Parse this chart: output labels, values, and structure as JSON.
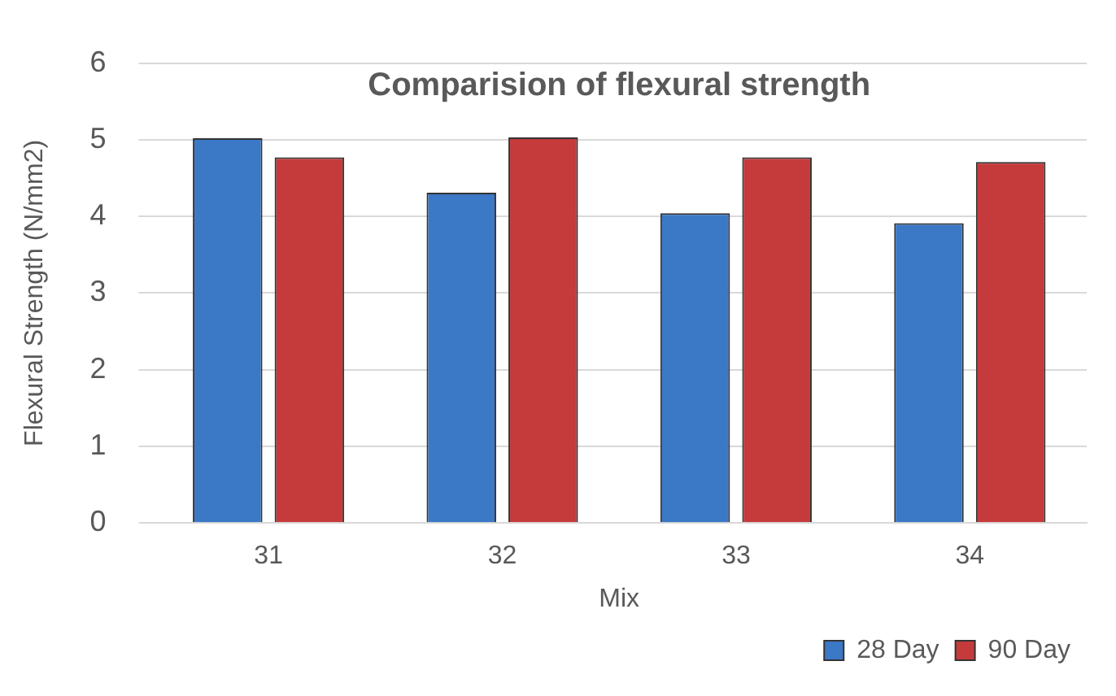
{
  "chart_data": {
    "type": "bar",
    "title": "Comparision of flexural strength",
    "xlabel": "Mix",
    "ylabel": "Flexural Strength (N/mm2)",
    "categories": [
      "31",
      "32",
      "33",
      "34"
    ],
    "series": [
      {
        "name": "28 Day",
        "color": "#3b78c6",
        "values": [
          5.02,
          4.31,
          4.04,
          3.91
        ]
      },
      {
        "name": "90 Day",
        "color": "#c53a3a",
        "values": [
          4.77,
          5.03,
          4.77,
          4.71
        ]
      }
    ],
    "ylim": [
      0,
      6
    ],
    "yticks": [
      0,
      1,
      2,
      3,
      4,
      5,
      6
    ],
    "grid": "y",
    "legend": "bottom right"
  }
}
